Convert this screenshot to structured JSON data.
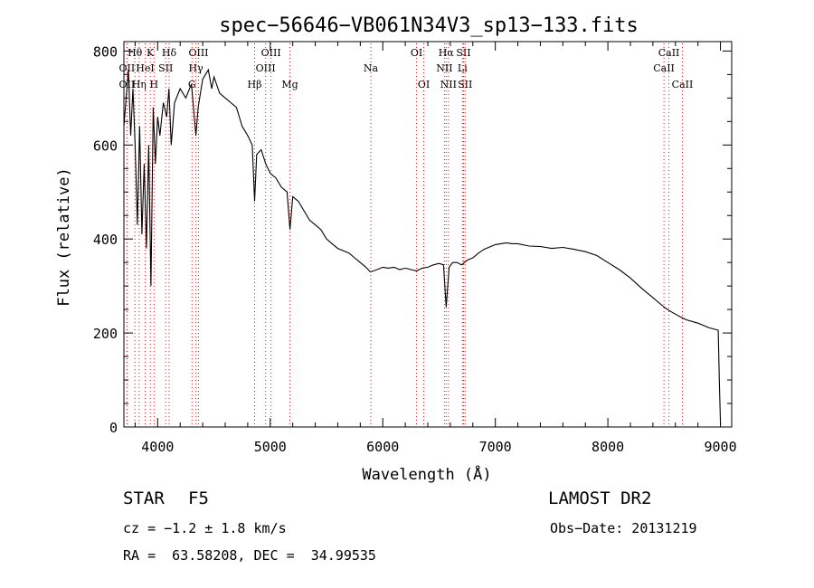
{
  "chart_data": {
    "type": "line",
    "title": "spec−56646−VB061N34V3_sp13−133.fits",
    "xlabel": "Wavelength (Å)",
    "ylabel": "Flux (relative)",
    "xlim": [
      3700,
      9100
    ],
    "ylim": [
      0,
      820
    ],
    "xticks": [
      4000,
      5000,
      6000,
      7000,
      8000,
      9000
    ],
    "yticks": [
      0,
      200,
      400,
      600,
      800
    ],
    "series": [
      {
        "name": "spectrum",
        "x": [
          3700,
          3720,
          3740,
          3760,
          3780,
          3800,
          3820,
          3840,
          3860,
          3880,
          3900,
          3920,
          3940,
          3960,
          3980,
          4000,
          4020,
          4050,
          4080,
          4100,
          4120,
          4150,
          4200,
          4250,
          4300,
          4340,
          4360,
          4400,
          4450,
          4480,
          4500,
          4550,
          4600,
          4650,
          4700,
          4750,
          4800,
          4840,
          4861,
          4880,
          4920,
          4960,
          5000,
          5050,
          5100,
          5150,
          5175,
          5200,
          5250,
          5300,
          5350,
          5400,
          5450,
          5500,
          5550,
          5600,
          5650,
          5700,
          5750,
          5800,
          5850,
          5890,
          5950,
          6000,
          6050,
          6100,
          6150,
          6200,
          6250,
          6300,
          6350,
          6400,
          6450,
          6500,
          6540,
          6563,
          6590,
          6620,
          6660,
          6700,
          6750,
          6800,
          6850,
          6900,
          6950,
          7000,
          7050,
          7100,
          7150,
          7200,
          7300,
          7400,
          7500,
          7600,
          7700,
          7800,
          7900,
          8000,
          8100,
          8200,
          8300,
          8400,
          8500,
          8542,
          8600,
          8662,
          8700,
          8800,
          8900,
          8980,
          8990,
          9000
        ],
        "values": [
          640,
          700,
          760,
          620,
          720,
          600,
          430,
          640,
          410,
          560,
          380,
          600,
          300,
          680,
          560,
          660,
          620,
          690,
          660,
          720,
          600,
          690,
          720,
          700,
          730,
          620,
          680,
          740,
          760,
          720,
          745,
          710,
          700,
          690,
          680,
          640,
          620,
          600,
          480,
          580,
          590,
          560,
          540,
          530,
          510,
          500,
          420,
          490,
          480,
          460,
          440,
          430,
          420,
          400,
          390,
          380,
          375,
          370,
          360,
          350,
          340,
          330,
          335,
          340,
          338,
          340,
          335,
          338,
          335,
          332,
          338,
          340,
          345,
          348,
          345,
          255,
          340,
          350,
          350,
          345,
          355,
          360,
          370,
          378,
          383,
          388,
          390,
          392,
          390,
          390,
          385,
          384,
          380,
          382,
          378,
          373,
          365,
          350,
          335,
          317,
          295,
          275,
          255,
          248,
          240,
          232,
          228,
          221,
          211,
          206,
          100,
          5
        ]
      }
    ],
    "lines": [
      {
        "label": "Hθ",
        "x": 3798,
        "row": 1
      },
      {
        "label": "OII",
        "x": 3727,
        "row": 2
      },
      {
        "label": "OII",
        "x": 3727,
        "row": 3
      },
      {
        "label": "Hη",
        "x": 3835,
        "row": 3
      },
      {
        "label": "HeI",
        "x": 3889,
        "row": 2
      },
      {
        "label": "K",
        "x": 3934,
        "row": 1
      },
      {
        "label": "SII",
        "x": 4072,
        "row": 2
      },
      {
        "label": "H",
        "x": 3968,
        "row": 3
      },
      {
        "label": "Hδ",
        "x": 4102,
        "row": 1
      },
      {
        "label": "OIII",
        "x": 4363,
        "row": 1
      },
      {
        "label": "Hγ",
        "x": 4340,
        "row": 2
      },
      {
        "label": "G",
        "x": 4305,
        "row": 3
      },
      {
        "label": "OIII",
        "x": 5007,
        "row": 1
      },
      {
        "label": "OIII",
        "x": 4959,
        "row": 2
      },
      {
        "label": "Hβ",
        "x": 4861,
        "row": 3
      },
      {
        "label": "Mg",
        "x": 5175,
        "row": 3
      },
      {
        "label": "Na",
        "x": 5893,
        "row": 2
      },
      {
        "label": "OI",
        "x": 6300,
        "row": 1
      },
      {
        "label": "OI",
        "x": 6364,
        "row": 3
      },
      {
        "label": "Hα",
        "x": 6563,
        "row": 1
      },
      {
        "label": "SII",
        "x": 6717,
        "row": 1
      },
      {
        "label": "NII",
        "x": 6548,
        "row": 2
      },
      {
        "label": "Li",
        "x": 6708,
        "row": 2
      },
      {
        "label": "NII",
        "x": 6583,
        "row": 3
      },
      {
        "label": "SII",
        "x": 6731,
        "row": 3
      },
      {
        "label": "CaII",
        "x": 8542,
        "row": 1
      },
      {
        "label": "CaII",
        "x": 8498,
        "row": 2
      },
      {
        "label": "CaII",
        "x": 8662,
        "row": 3
      }
    ]
  },
  "info": {
    "object_class": "STAR",
    "subclass": "F5",
    "survey": "LAMOST DR2",
    "cz": "cz = −1.2 ± 1.8 km/s",
    "obs_date": "Obs−Date: 20131219",
    "ra_dec": "RA =  63.58208, DEC =  34.99535"
  }
}
